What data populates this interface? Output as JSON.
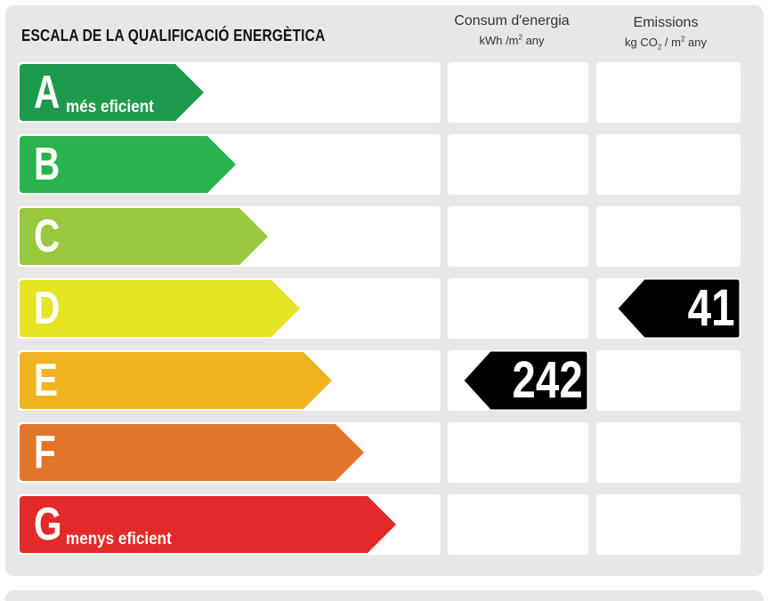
{
  "title": "ESCALA DE LA QUALIFICACIÓ ENERGÈTICA",
  "columns": {
    "consum": {
      "label": "Consum d'energia",
      "unit_prefix": "kWh /m",
      "unit_sup": "2",
      "unit_suffix": " any"
    },
    "emissions": {
      "label": "Emissions",
      "unit_prefix": "kg CO",
      "unit_sub": "2",
      "unit_mid": " / m",
      "unit_sup": "2",
      "unit_suffix": " any"
    }
  },
  "classes": [
    {
      "letter": "A",
      "note": "més eficient",
      "color": "#1d9a4c"
    },
    {
      "letter": "B",
      "note": "",
      "color": "#2ab34c"
    },
    {
      "letter": "C",
      "note": "",
      "color": "#98c83d"
    },
    {
      "letter": "D",
      "note": "",
      "color": "#e5e423"
    },
    {
      "letter": "E",
      "note": "",
      "color": "#efb41f"
    },
    {
      "letter": "F",
      "note": "",
      "color": "#e2752a"
    },
    {
      "letter": "G",
      "note": "menys eficient",
      "color": "#e22b28"
    }
  ],
  "ratings": {
    "consum": {
      "class": "E",
      "value": "242"
    },
    "emissions": {
      "class": "D",
      "value": "41"
    }
  }
}
